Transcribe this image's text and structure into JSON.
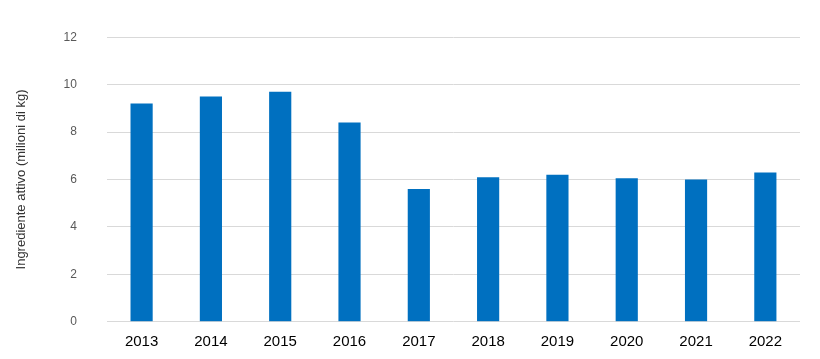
{
  "chart_data": {
    "type": "bar",
    "y_label": "Ingrediente attivo (milioni di kg)",
    "categories": [
      "2013",
      "2014",
      "2015",
      "2016",
      "2017",
      "2018",
      "2019",
      "2020",
      "2021",
      "2022"
    ],
    "values": [
      9.2,
      9.5,
      9.7,
      8.4,
      5.6,
      6.1,
      6.2,
      6.05,
      6.0,
      6.3
    ],
    "color": "#0070c0",
    "ylim": [
      0,
      12
    ],
    "yticks": [
      0,
      2,
      4,
      6,
      8,
      10,
      12
    ],
    "grid": true
  }
}
